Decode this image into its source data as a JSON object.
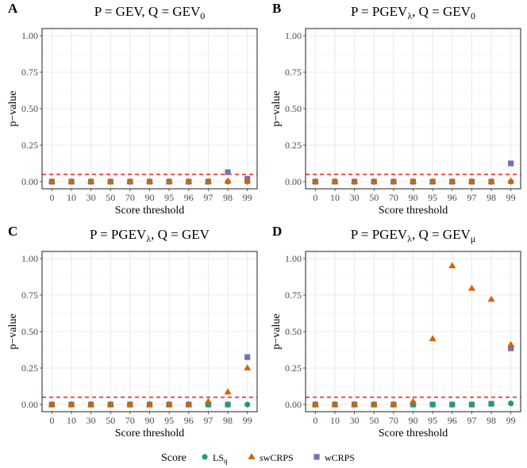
{
  "colors": {
    "ls": "#1b9e77",
    "swcrps": "#d95f02",
    "wcrps": "#7570b3",
    "ref_line": "#ff0000",
    "grid": "#ebebeb",
    "border": "#333333"
  },
  "legend": {
    "title": "Score",
    "items": [
      {
        "key": "ls",
        "label": "LS",
        "sub": "q",
        "shape": "circle"
      },
      {
        "key": "swcrps",
        "label": "swCRPS",
        "sub": "",
        "shape": "triangle"
      },
      {
        "key": "wcrps",
        "label": "wCRPS",
        "sub": "",
        "shape": "square"
      }
    ]
  },
  "chart_data": [
    {
      "type": "scatter",
      "panel_label": "A",
      "title": {
        "p": "GEV",
        "p_sub": "",
        "q": "GEV",
        "q_sub": "0"
      },
      "xlabel": "Score threshold",
      "ylabel": "p−value",
      "categories": [
        "0",
        "10",
        "30",
        "50",
        "70",
        "90",
        "95",
        "96",
        "97",
        "98",
        "99"
      ],
      "yticks": [
        "0.00",
        "0.25",
        "0.50",
        "0.75",
        "1.00"
      ],
      "ylim": [
        0,
        1
      ],
      "ref_line": 0.05,
      "series": [
        {
          "name": "LS_q",
          "key": "ls",
          "values": [
            0,
            0,
            0,
            0,
            0,
            0,
            0,
            0,
            0,
            0,
            0
          ]
        },
        {
          "name": "swCRPS",
          "key": "swcrps",
          "values": [
            0,
            0,
            0,
            0,
            0,
            0,
            0,
            0,
            0,
            0.003,
            0.003
          ]
        },
        {
          "name": "wCRPS",
          "key": "wcrps",
          "values": [
            0,
            0,
            0,
            0,
            0,
            0,
            0,
            0,
            0,
            0.065,
            0.02
          ]
        }
      ]
    },
    {
      "type": "scatter",
      "panel_label": "B",
      "title": {
        "p": "PGEV",
        "p_sub": "λ",
        "q": "GEV",
        "q_sub": "0"
      },
      "xlabel": "Score threshold",
      "ylabel": "p−value",
      "categories": [
        "0",
        "10",
        "30",
        "50",
        "70",
        "90",
        "95",
        "96",
        "97",
        "98",
        "99"
      ],
      "yticks": [
        "0.00",
        "0.25",
        "0.50",
        "0.75",
        "1.00"
      ],
      "ylim": [
        0,
        1
      ],
      "ref_line": 0.05,
      "series": [
        {
          "name": "LS_q",
          "key": "ls",
          "values": [
            0,
            0,
            0,
            0,
            0,
            0,
            0,
            0,
            0,
            0,
            0
          ]
        },
        {
          "name": "swCRPS",
          "key": "swcrps",
          "values": [
            0,
            0,
            0,
            0,
            0,
            0,
            0,
            0,
            0,
            0,
            0.003
          ]
        },
        {
          "name": "wCRPS",
          "key": "wcrps",
          "values": [
            0,
            0,
            0,
            0,
            0,
            0,
            0,
            0,
            0,
            0,
            0.125
          ]
        }
      ]
    },
    {
      "type": "scatter",
      "panel_label": "C",
      "title": {
        "p": "PGEV",
        "p_sub": "λ",
        "q": "GEV",
        "q_sub": ""
      },
      "xlabel": "Score threshold",
      "ylabel": "p−value",
      "categories": [
        "0",
        "10",
        "30",
        "50",
        "70",
        "90",
        "95",
        "96",
        "97",
        "98",
        "99"
      ],
      "yticks": [
        "0.00",
        "0.25",
        "0.50",
        "0.75",
        "1.00"
      ],
      "ylim": [
        0,
        1
      ],
      "ref_line": 0.05,
      "series": [
        {
          "name": "LS_q",
          "key": "ls",
          "values": [
            0,
            0,
            0,
            0,
            0,
            0,
            0,
            0,
            0,
            0,
            0
          ]
        },
        {
          "name": "swCRPS",
          "key": "swcrps",
          "values": [
            0,
            0,
            0,
            0,
            0,
            0,
            0,
            0,
            0.02,
            0.085,
            0.25
          ]
        },
        {
          "name": "wCRPS",
          "key": "wcrps",
          "values": [
            0,
            0,
            0,
            0,
            0,
            0,
            0,
            0,
            0,
            0,
            0.325
          ]
        }
      ]
    },
    {
      "type": "scatter",
      "panel_label": "D",
      "title": {
        "p": "PGEV",
        "p_sub": "λ",
        "q": "GEV",
        "q_sub": "μ"
      },
      "xlabel": "Score threshold",
      "ylabel": "p−value",
      "categories": [
        "0",
        "10",
        "30",
        "50",
        "70",
        "90",
        "95",
        "96",
        "97",
        "98",
        "99"
      ],
      "yticks": [
        "0.00",
        "0.25",
        "0.50",
        "0.75",
        "1.00"
      ],
      "ylim": [
        0,
        1
      ],
      "ref_line": 0.05,
      "series": [
        {
          "name": "LS_q",
          "key": "ls",
          "values": [
            0,
            0,
            0,
            0,
            0,
            0,
            0,
            0,
            0,
            0.005,
            0.008
          ]
        },
        {
          "name": "swCRPS",
          "key": "swcrps",
          "values": [
            0,
            0,
            0,
            0,
            0,
            0.02,
            0.45,
            0.95,
            0.795,
            0.72,
            0.41
          ]
        },
        {
          "name": "wCRPS",
          "key": "wcrps",
          "values": [
            0,
            0,
            0,
            0,
            0,
            0,
            0,
            0,
            0,
            0.005,
            0.385
          ]
        }
      ]
    }
  ]
}
